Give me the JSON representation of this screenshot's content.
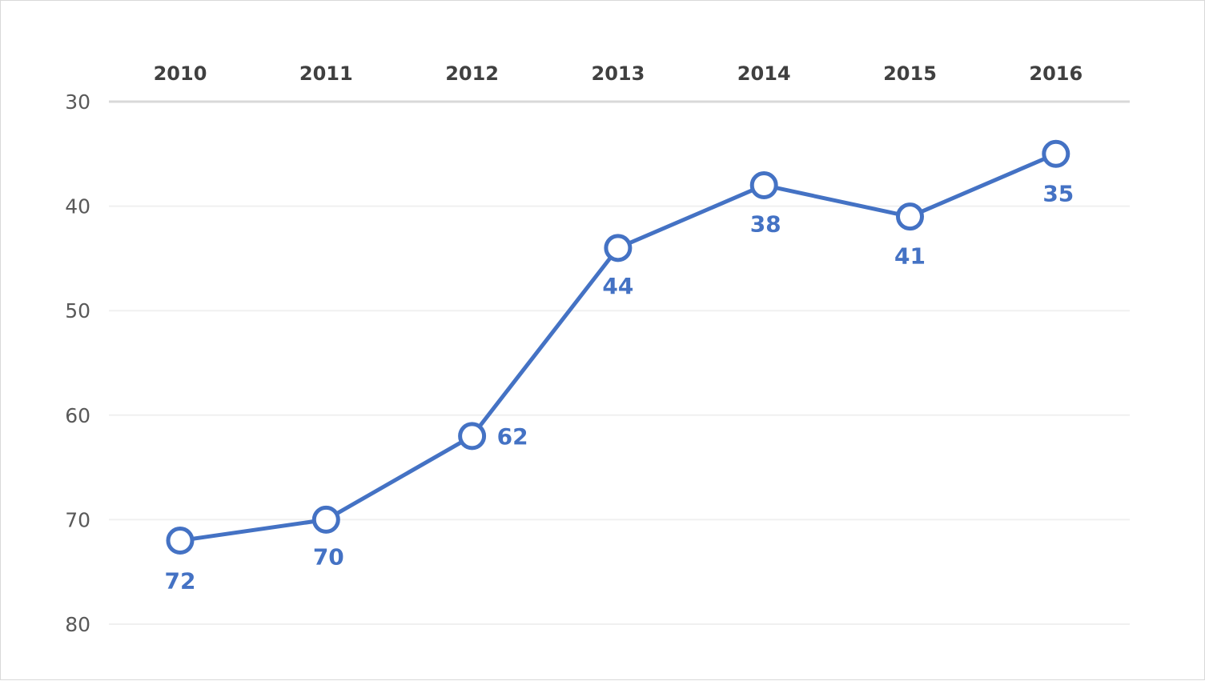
{
  "chart_data": {
    "type": "line",
    "title": "",
    "xlabel": "",
    "ylabel": "",
    "categories": [
      "2010",
      "2011",
      "2012",
      "2013",
      "2014",
      "2015",
      "2016"
    ],
    "series": [
      {
        "values": [
          72,
          70,
          62,
          44,
          38,
          41,
          35
        ],
        "color": "#4472c4"
      }
    ],
    "y_axis": {
      "reversed": true,
      "ylim": [
        30,
        80
      ],
      "ticks": [
        "30",
        "40",
        "50",
        "60",
        "70",
        "80"
      ]
    },
    "x_axis_position": "top",
    "data_labels": [
      "72",
      "70",
      "62",
      "44",
      "38",
      "41",
      "35"
    ],
    "grid": true,
    "legend": "none"
  }
}
